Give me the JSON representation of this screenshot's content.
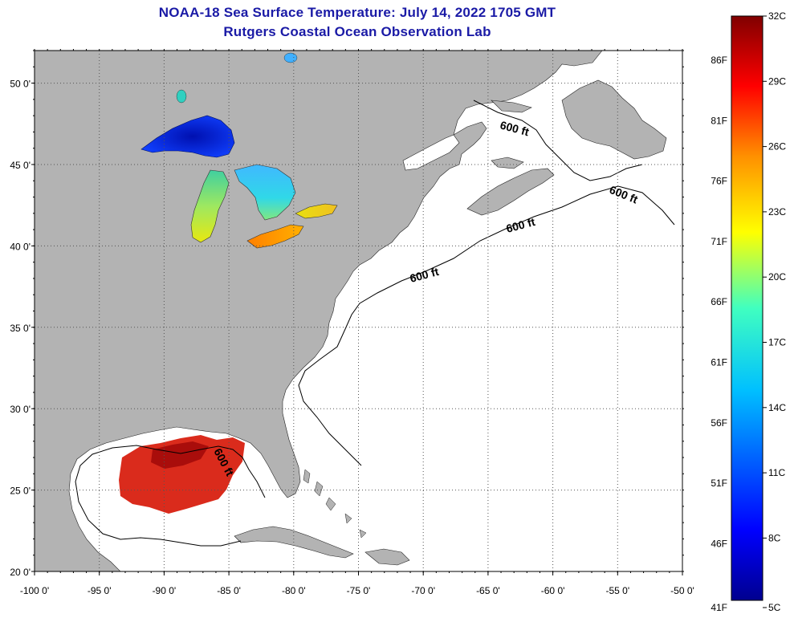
{
  "header": {
    "title": "NOAA-18 Sea Surface Temperature:  July 14, 2022 1705 GMT",
    "subtitle": "Rutgers Coastal Ocean Observation Lab"
  },
  "map": {
    "lon_range": [
      -100,
      -50
    ],
    "lat_range": [
      20,
      52
    ],
    "lon_ticks": [
      "-100 0'",
      "-95 0'",
      "-90 0'",
      "-85 0'",
      "-80 0'",
      "-75 0'",
      "-70 0'",
      "-65 0'",
      "-60 0'",
      "-55 0'",
      "-50 0'"
    ],
    "lat_ticks": [
      "50 0'",
      "45 0'",
      "40 0'",
      "35 0'",
      "30 0'",
      "25 0'",
      "20 0'"
    ],
    "contour_labels": [
      "600 ft",
      "600 ft",
      "600 ft",
      "600 ft",
      "600 ft"
    ],
    "grid": true,
    "colors": {
      "land": "#b3b3b3",
      "ocean": "#ffffff",
      "grid": "#555555"
    }
  },
  "colorbar": {
    "fahrenheit": [
      "86F",
      "81F",
      "76F",
      "71F",
      "66F",
      "61F",
      "56F",
      "51F",
      "46F",
      "41F"
    ],
    "celsius": [
      "32C",
      "29C",
      "26C",
      "23C",
      "20C",
      "17C",
      "14C",
      "11C",
      "8C",
      "5C"
    ],
    "range_c": [
      5,
      32
    ],
    "colors": [
      "#00008f",
      "#0000ff",
      "#0080ff",
      "#00ffff",
      "#80ff80",
      "#ffff00",
      "#ff8000",
      "#ff0000",
      "#800000"
    ]
  }
}
